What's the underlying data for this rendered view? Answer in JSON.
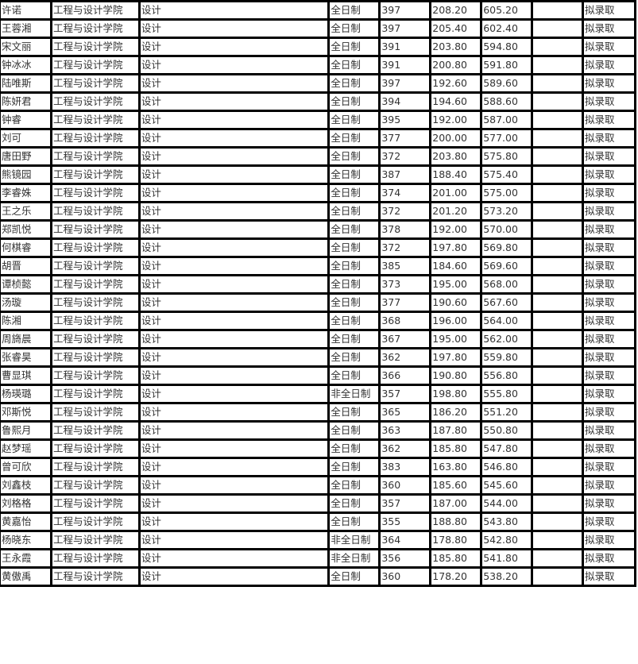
{
  "table": {
    "rows": [
      [
        "许诺",
        "工程与设计学院",
        "设计",
        "全日制",
        "397",
        "208.20",
        "605.20",
        "",
        "拟录取"
      ],
      [
        "王蓉湘",
        "工程与设计学院",
        "设计",
        "全日制",
        "397",
        "205.40",
        "602.40",
        "",
        "拟录取"
      ],
      [
        "宋文丽",
        "工程与设计学院",
        "设计",
        "全日制",
        "391",
        "203.80",
        "594.80",
        "",
        "拟录取"
      ],
      [
        "钟冰冰",
        "工程与设计学院",
        "设计",
        "全日制",
        "391",
        "200.80",
        "591.80",
        "",
        "拟录取"
      ],
      [
        "陆唯斯",
        "工程与设计学院",
        "设计",
        "全日制",
        "397",
        "192.60",
        "589.60",
        "",
        "拟录取"
      ],
      [
        "陈妍君",
        "工程与设计学院",
        "设计",
        "全日制",
        "394",
        "194.60",
        "588.60",
        "",
        "拟录取"
      ],
      [
        "钟睿",
        "工程与设计学院",
        "设计",
        "全日制",
        "395",
        "192.00",
        "587.00",
        "",
        "拟录取"
      ],
      [
        "刘可",
        "工程与设计学院",
        "设计",
        "全日制",
        "377",
        "200.00",
        "577.00",
        "",
        "拟录取"
      ],
      [
        "唐田野",
        "工程与设计学院",
        "设计",
        "全日制",
        "372",
        "203.80",
        "575.80",
        "",
        "拟录取"
      ],
      [
        "熊镜园",
        "工程与设计学院",
        "设计",
        "全日制",
        "387",
        "188.40",
        "575.40",
        "",
        "拟录取"
      ],
      [
        "李睿姝",
        "工程与设计学院",
        "设计",
        "全日制",
        "374",
        "201.00",
        "575.00",
        "",
        "拟录取"
      ],
      [
        "王之乐",
        "工程与设计学院",
        "设计",
        "全日制",
        "372",
        "201.20",
        "573.20",
        "",
        "拟录取"
      ],
      [
        "郑凯悦",
        "工程与设计学院",
        "设计",
        "全日制",
        "378",
        "192.00",
        "570.00",
        "",
        "拟录取"
      ],
      [
        "何棋睿",
        "工程与设计学院",
        "设计",
        "全日制",
        "372",
        "197.80",
        "569.80",
        "",
        "拟录取"
      ],
      [
        "胡晋",
        "工程与设计学院",
        "设计",
        "全日制",
        "385",
        "184.60",
        "569.60",
        "",
        "拟录取"
      ],
      [
        "谭桢懿",
        "工程与设计学院",
        "设计",
        "全日制",
        "373",
        "195.00",
        "568.00",
        "",
        "拟录取"
      ],
      [
        "汤璇",
        "工程与设计学院",
        "设计",
        "全日制",
        "377",
        "190.60",
        "567.60",
        "",
        "拟录取"
      ],
      [
        "陈湘",
        "工程与设计学院",
        "设计",
        "全日制",
        "368",
        "196.00",
        "564.00",
        "",
        "拟录取"
      ],
      [
        "周旖晨",
        "工程与设计学院",
        "设计",
        "全日制",
        "367",
        "195.00",
        "562.00",
        "",
        "拟录取"
      ],
      [
        "张睿昊",
        "工程与设计学院",
        "设计",
        "全日制",
        "362",
        "197.80",
        "559.80",
        "",
        "拟录取"
      ],
      [
        "曹显琪",
        "工程与设计学院",
        "设计",
        "全日制",
        "366",
        "190.80",
        "556.80",
        "",
        "拟录取"
      ],
      [
        "杨瑛璐",
        "工程与设计学院",
        "设计",
        "非全日制",
        "357",
        "198.80",
        "555.80",
        "",
        "拟录取"
      ],
      [
        "邓斯悦",
        "工程与设计学院",
        "设计",
        "全日制",
        "365",
        "186.20",
        "551.20",
        "",
        "拟录取"
      ],
      [
        "鲁熙月",
        "工程与设计学院",
        "设计",
        "全日制",
        "363",
        "187.80",
        "550.80",
        "",
        "拟录取"
      ],
      [
        "赵梦瑶",
        "工程与设计学院",
        "设计",
        "全日制",
        "362",
        "185.80",
        "547.80",
        "",
        "拟录取"
      ],
      [
        "曾可欣",
        "工程与设计学院",
        "设计",
        "全日制",
        "383",
        "163.80",
        "546.80",
        "",
        "拟录取"
      ],
      [
        "刘鑫枝",
        "工程与设计学院",
        "设计",
        "全日制",
        "360",
        "185.60",
        "545.60",
        "",
        "拟录取"
      ],
      [
        "刘格格",
        "工程与设计学院",
        "设计",
        "全日制",
        "357",
        "187.00",
        "544.00",
        "",
        "拟录取"
      ],
      [
        "黄嘉怡",
        "工程与设计学院",
        "设计",
        "全日制",
        "355",
        "188.80",
        "543.80",
        "",
        "拟录取"
      ],
      [
        "杨晓东",
        "工程与设计学院",
        "设计",
        "非全日制",
        "364",
        "178.80",
        "542.80",
        "",
        "拟录取"
      ],
      [
        "王永霞",
        "工程与设计学院",
        "设计",
        "非全日制",
        "356",
        "185.80",
        "541.80",
        "",
        "拟录取"
      ],
      [
        "黄傲禹",
        "工程与设计学院",
        "设计",
        "全日制",
        "360",
        "178.20",
        "538.20",
        "",
        "拟录取"
      ]
    ]
  }
}
